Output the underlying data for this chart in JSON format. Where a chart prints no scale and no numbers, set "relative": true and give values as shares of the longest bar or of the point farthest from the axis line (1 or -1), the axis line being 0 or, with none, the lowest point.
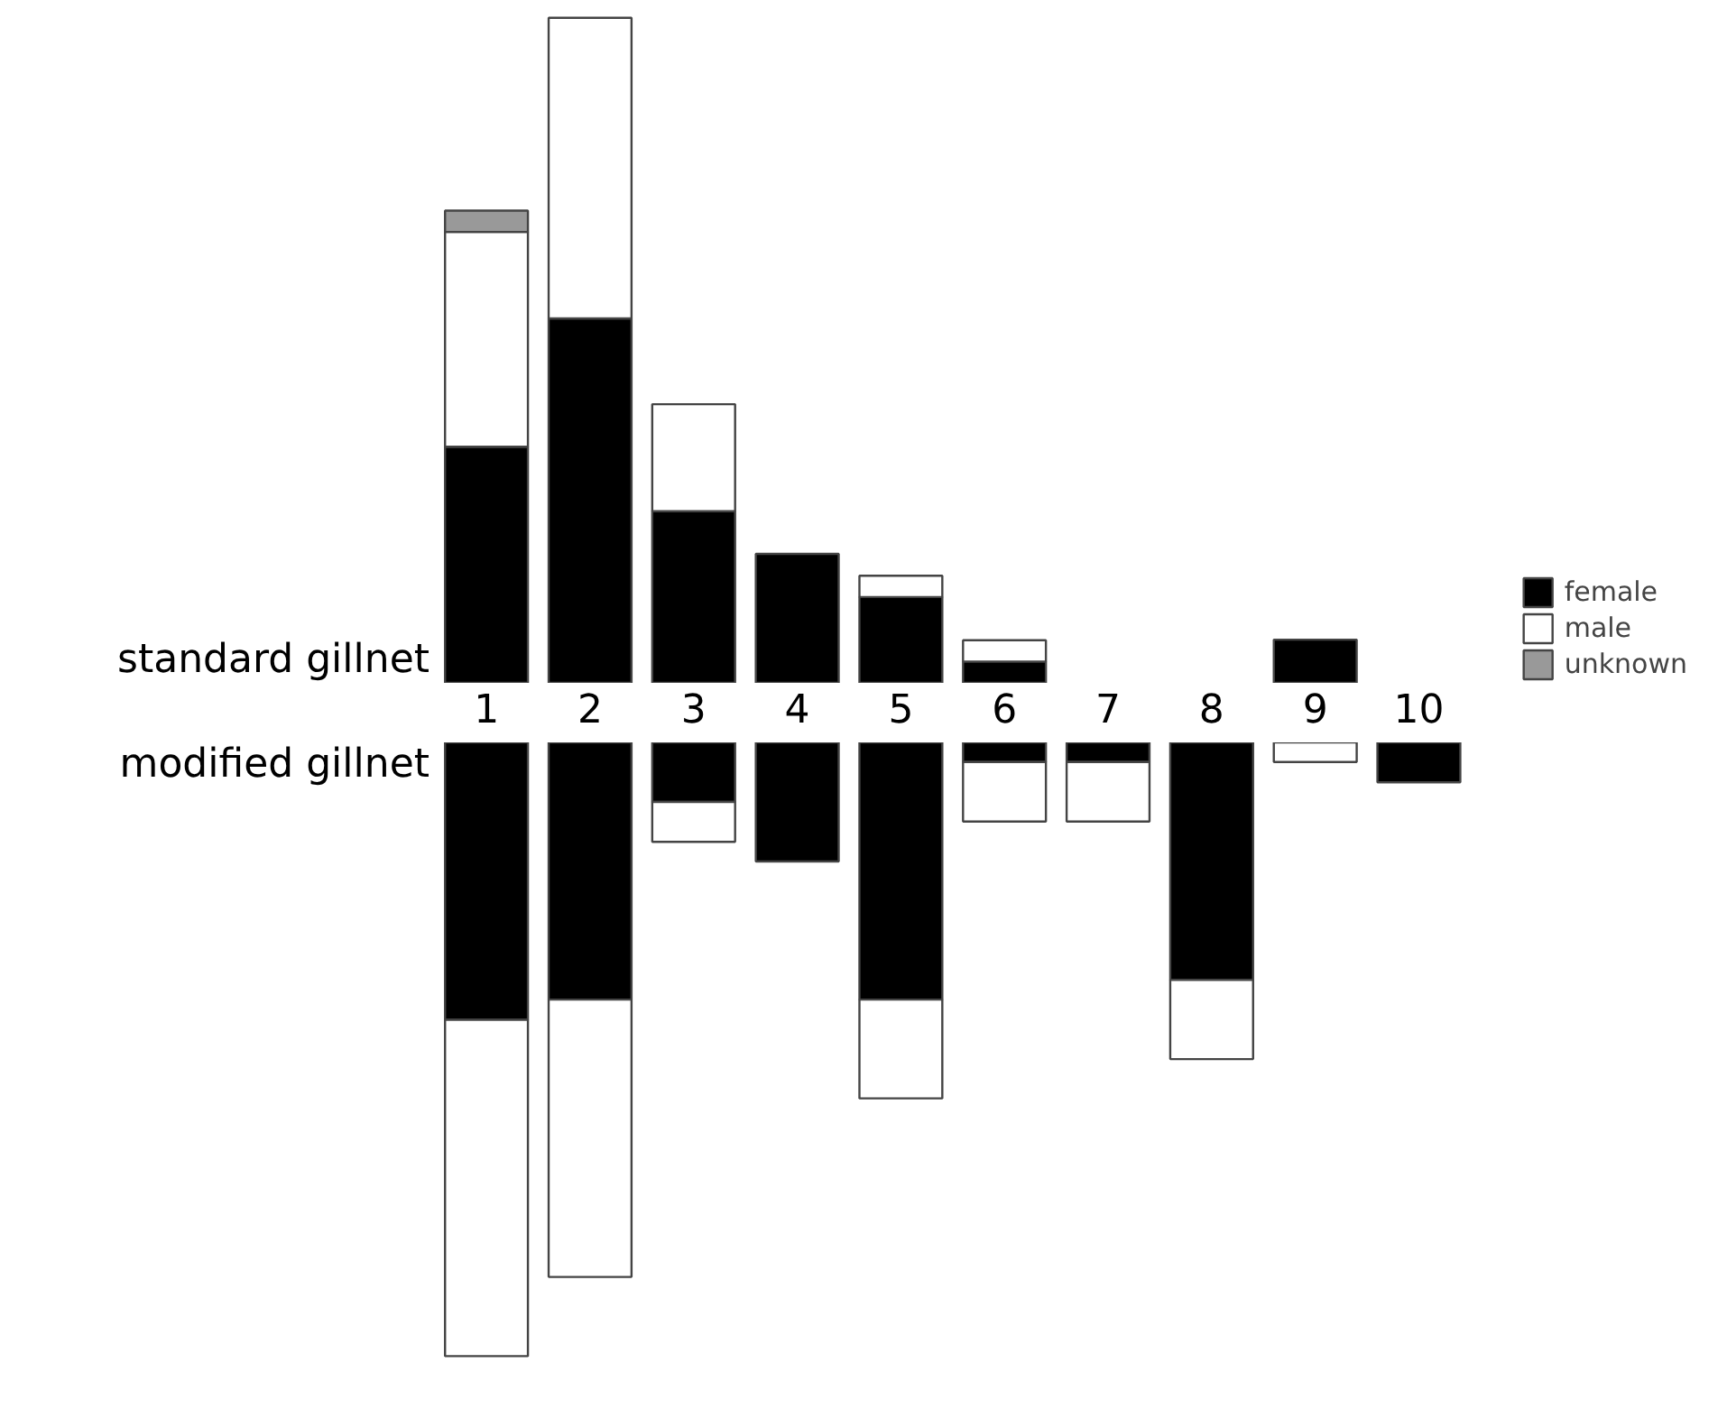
{
  "chart_data": [
    {
      "type": "bar",
      "title": "standard gillnet",
      "stacked": true,
      "relative": true,
      "tick_labels": false,
      "legend": "bottom right",
      "categories": [
        "1",
        "2",
        "3",
        "4",
        "5",
        "6",
        "7",
        "8",
        "9",
        "10"
      ],
      "series": [
        {
          "name": "female",
          "color": "#000000",
          "values": [
            0.355,
            0.548,
            0.258,
            0.194,
            0.129,
            0.032,
            0,
            0,
            0.065,
            0
          ]
        },
        {
          "name": "male",
          "color": "#ffffff",
          "values": [
            0.323,
            0.452,
            0.161,
            0,
            0.032,
            0.032,
            0,
            0,
            0,
            0
          ]
        },
        {
          "name": "unknown",
          "color": "#999999",
          "values": [
            0.032,
            0,
            0,
            0,
            0,
            0,
            0,
            0,
            0,
            0
          ]
        }
      ]
    },
    {
      "type": "bar",
      "title": "modified gillnet",
      "stacked": true,
      "relative": true,
      "tick_labels": "x",
      "categories": [
        "1",
        "2",
        "3",
        "4",
        "5",
        "6",
        "7",
        "8",
        "9",
        "10"
      ],
      "series": [
        {
          "color": "#000000",
          "values": [
            -0.452,
            -0.419,
            -0.097,
            -0.194,
            -0.419,
            -0.032,
            -0.032,
            -0.387,
            0,
            -0.065
          ]
        },
        {
          "color": "#ffffff",
          "values": [
            -0.548,
            -0.452,
            -0.065,
            0,
            -0.161,
            -0.097,
            -0.097,
            -0.129,
            -0.032,
            0
          ]
        }
      ]
    }
  ]
}
